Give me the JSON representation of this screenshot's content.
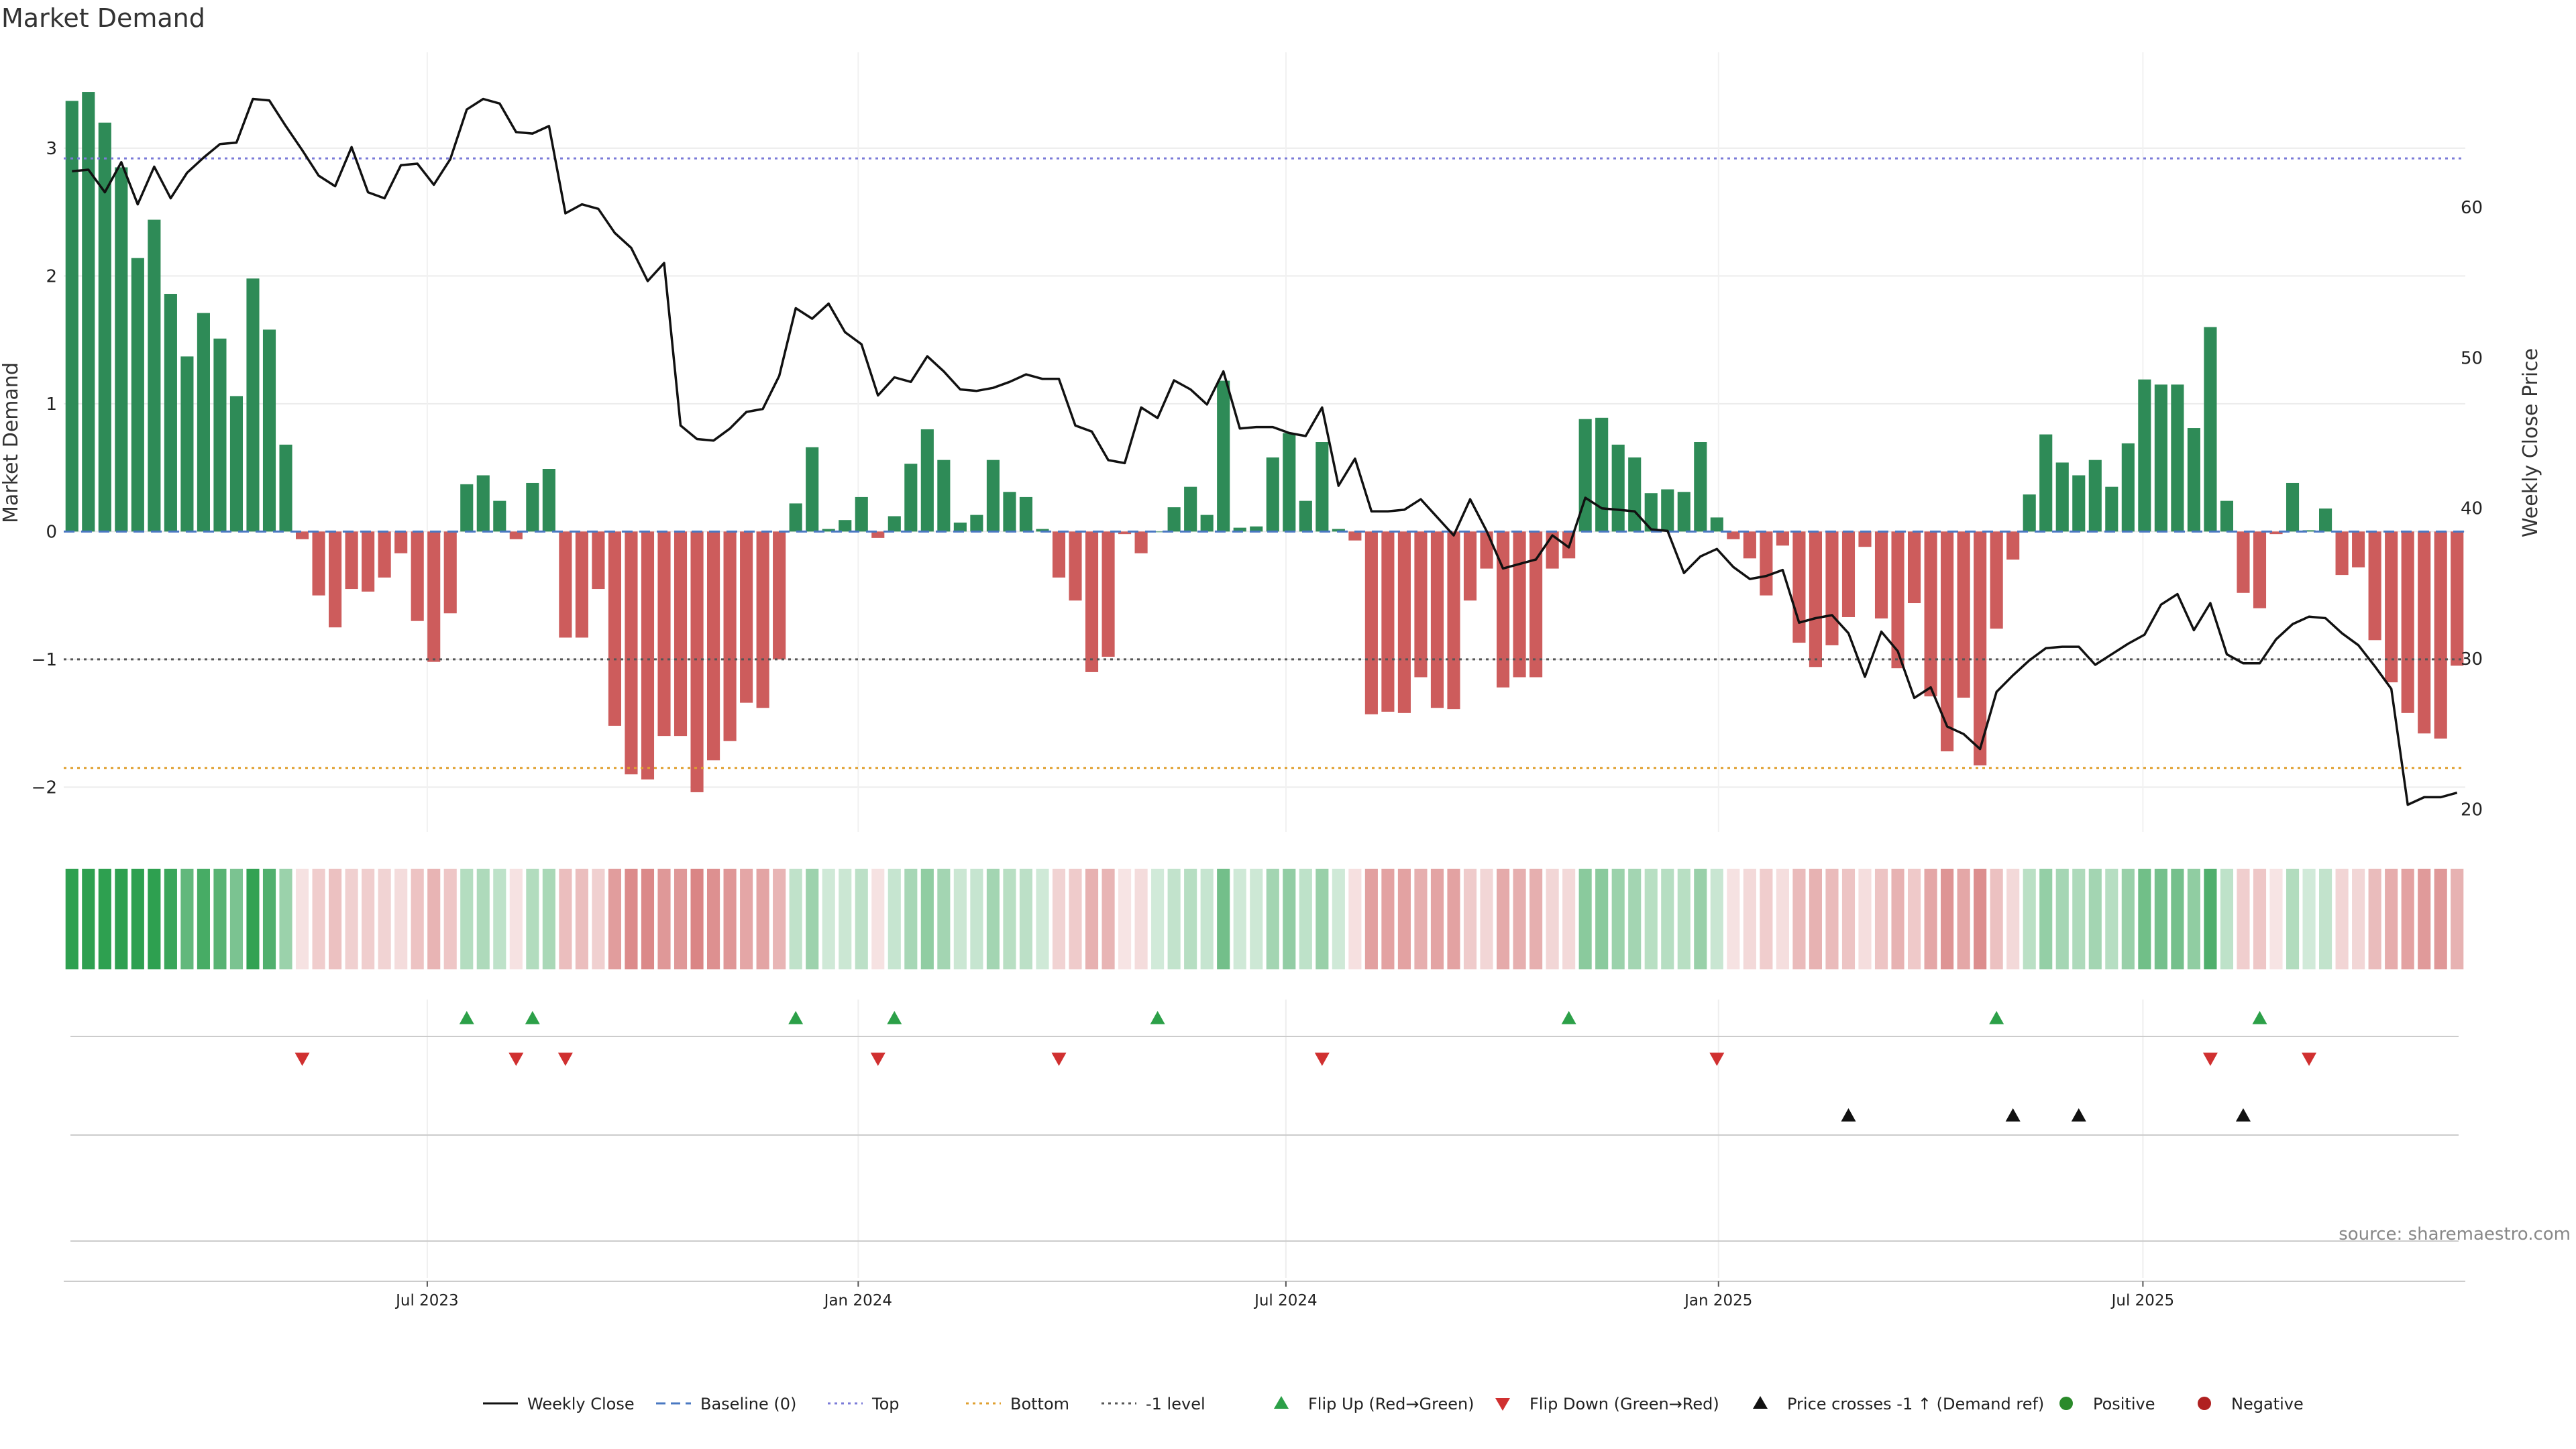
{
  "title": "Market Demand",
  "source": "source: sharemaestro.com",
  "colors": {
    "positive_bar": "#2e8b57",
    "negative_bar": "#cd5c5c",
    "price_line": "#111111",
    "baseline": "#4a78c2",
    "top_line": "#7b7bd8",
    "bottom_line": "#e0a030",
    "minus1_line": "#555555",
    "flip_up": "#2ca048",
    "flip_down": "#d03030",
    "cross_marker": "#111111",
    "positive_dot": "#2a8a2a",
    "negative_dot": "#b02020"
  },
  "chart_data": {
    "type": "bar",
    "title": "Market Demand",
    "ylabel": "Market Demand",
    "y2label": "Weekly Close Price",
    "ylim": [
      -2.35,
      3.75
    ],
    "y2lim": [
      18.5,
      70.3
    ],
    "yticks": [
      3,
      2,
      1,
      0,
      -1,
      -2
    ],
    "ytick_labels": [
      "3",
      "2",
      "1",
      "0",
      "−1",
      "−2"
    ],
    "y2ticks": [
      60,
      50,
      40,
      30,
      20
    ],
    "x_start_week": 0,
    "x_end_week": 143,
    "xticks": [
      {
        "label": "Jul 2023",
        "week": 21.6
      },
      {
        "label": "Jan 2024",
        "week": 47.8
      },
      {
        "label": "Jul 2024",
        "week": 73.8
      },
      {
        "label": "Jan 2025",
        "week": 100.1
      },
      {
        "label": "Jul 2025",
        "week": 125.9
      }
    ],
    "reference_lines": {
      "top": 2.92,
      "bottom": -1.85,
      "minus1": -1.0,
      "baseline": 0
    },
    "demand": [
      3.37,
      3.44,
      3.2,
      2.85,
      2.14,
      2.44,
      1.86,
      1.37,
      1.71,
      1.51,
      1.06,
      1.98,
      1.58,
      0.68,
      -0.06,
      -0.5,
      -0.75,
      -0.45,
      -0.47,
      -0.36,
      -0.17,
      -0.7,
      -1.02,
      -0.64,
      0.37,
      0.44,
      0.24,
      -0.06,
      0.38,
      0.49,
      -0.83,
      -0.83,
      -0.45,
      -1.52,
      -1.9,
      -1.94,
      -1.6,
      -1.6,
      -2.04,
      -1.79,
      -1.64,
      -1.34,
      -1.38,
      -1.0,
      0.22,
      0.66,
      0.02,
      0.09,
      0.27,
      -0.05,
      0.12,
      0.53,
      0.8,
      0.56,
      0.07,
      0.13,
      0.56,
      0.31,
      0.27,
      0.02,
      -0.36,
      -0.54,
      -1.1,
      -0.98,
      -0.02,
      -0.17,
      0.0,
      0.19,
      0.35,
      0.13,
      1.18,
      0.03,
      0.04,
      0.58,
      0.77,
      0.24,
      0.7,
      0.02,
      -0.07,
      -1.43,
      -1.41,
      -1.42,
      -1.14,
      -1.38,
      -1.39,
      -0.54,
      -0.29,
      -1.22,
      -1.14,
      -1.14,
      -0.29,
      -0.21,
      0.88,
      0.89,
      0.68,
      0.58,
      0.3,
      0.33,
      0.31,
      0.7,
      0.11,
      -0.06,
      -0.21,
      -0.5,
      -0.11,
      -0.87,
      -1.06,
      -0.89,
      -0.67,
      -0.12,
      -0.68,
      -1.07,
      -0.56,
      -1.29,
      -1.72,
      -1.3,
      -1.83,
      -0.76,
      -0.22,
      0.29,
      0.76,
      0.54,
      0.44,
      0.56,
      0.35,
      0.69,
      1.19,
      1.15,
      1.15,
      0.81,
      1.6,
      0.24,
      -0.48,
      -0.6,
      -0.02,
      0.38,
      0.01,
      0.18,
      -0.34,
      -0.28,
      -0.85,
      -1.18,
      -1.42,
      -1.58,
      -1.62,
      -1.05
    ],
    "weekly_close": [
      62.4,
      62.5,
      61.0,
      63.0,
      60.2,
      62.7,
      60.6,
      62.3,
      63.3,
      64.2,
      64.3,
      67.2,
      67.1,
      65.4,
      63.8,
      62.1,
      61.4,
      64.0,
      61.0,
      60.6,
      62.8,
      62.9,
      61.5,
      63.2,
      66.5,
      67.2,
      66.9,
      65.0,
      64.9,
      65.4,
      59.6,
      60.2,
      59.9,
      58.3,
      57.3,
      55.1,
      56.3,
      45.5,
      44.6,
      44.5,
      45.3,
      46.4,
      46.6,
      48.8,
      53.3,
      52.6,
      53.6,
      51.7,
      50.9,
      47.5,
      48.7,
      48.4,
      50.1,
      49.1,
      47.9,
      47.8,
      48.0,
      48.4,
      48.9,
      48.6,
      48.6,
      45.5,
      45.1,
      43.2,
      43.0,
      46.7,
      46.0,
      48.5,
      47.9,
      46.9,
      49.1,
      45.3,
      45.4,
      45.4,
      45.0,
      44.8,
      46.7,
      41.5,
      43.3,
      39.8,
      39.8,
      39.9,
      40.6,
      39.4,
      38.2,
      40.6,
      38.5,
      36.0,
      36.3,
      36.6,
      38.2,
      37.4,
      40.7,
      40.0,
      39.9,
      39.8,
      38.6,
      38.5,
      35.7,
      36.8,
      37.3,
      36.1,
      35.3,
      35.5,
      35.9,
      32.4,
      32.7,
      32.9,
      31.7,
      28.8,
      31.8,
      30.5,
      27.4,
      28.1,
      25.5,
      25.0,
      24.0,
      27.8,
      28.9,
      29.9,
      30.7,
      30.8,
      30.8,
      29.6,
      30.3,
      31.0,
      31.6,
      33.6,
      34.3,
      31.9,
      33.7,
      30.3,
      29.7,
      29.7,
      31.3,
      32.3,
      32.8,
      32.7,
      31.7,
      30.9,
      29.5,
      28.0,
      20.3,
      20.8,
      20.8,
      21.1
    ],
    "flip_up_weeks": [
      24,
      28,
      44,
      50,
      66,
      91,
      117,
      133
    ],
    "flip_down_weeks": [
      14,
      27,
      30,
      49,
      60,
      76,
      100,
      130,
      136
    ],
    "price_cross_weeks": [
      108,
      118,
      122,
      132
    ],
    "legend": [
      {
        "label": "Weekly Close",
        "kind": "line-solid",
        "color": "#111111"
      },
      {
        "label": "Baseline (0)",
        "kind": "line-dashed",
        "color": "#4a78c2"
      },
      {
        "label": "Top",
        "kind": "line-dotted",
        "color": "#7b7bd8"
      },
      {
        "label": "Bottom",
        "kind": "line-dotted",
        "color": "#e0a030"
      },
      {
        "label": "-1 level",
        "kind": "line-dotted",
        "color": "#555555"
      },
      {
        "label": "Flip Up (Red→Green)",
        "kind": "tri-up",
        "color": "#2ca048"
      },
      {
        "label": "Flip Down (Green→Red)",
        "kind": "tri-down",
        "color": "#d03030"
      },
      {
        "label": "Price crosses -1 ↑ (Demand ref)",
        "kind": "tri-up",
        "color": "#111111"
      },
      {
        "label": "Positive",
        "kind": "dot",
        "color": "#2a8a2a"
      },
      {
        "label": "Negative",
        "kind": "dot",
        "color": "#b02020"
      }
    ]
  }
}
